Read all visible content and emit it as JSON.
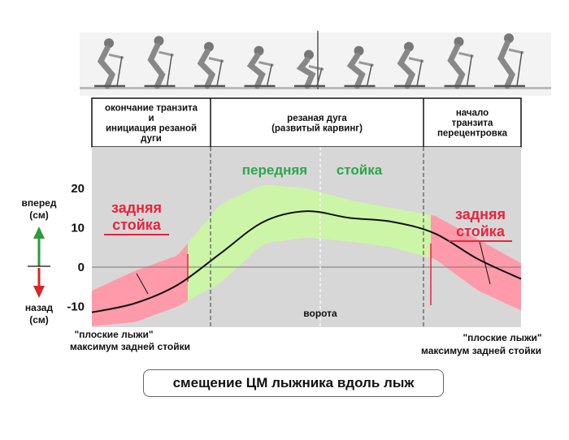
{
  "phases": [
    {
      "lines": [
        "окончание транзита",
        "и",
        "инициация резаной",
        "дуги"
      ]
    },
    {
      "lines": [
        "резаная дуга",
        "(развитый карвинг)"
      ]
    },
    {
      "lines": [
        "начало",
        "транзита",
        "перецентровка"
      ]
    }
  ],
  "stance": {
    "forward_word1": "передняя",
    "forward_word2": "стойка",
    "back_left": [
      "задняя",
      "стойка"
    ],
    "back_right": [
      "задняя",
      "стойка"
    ]
  },
  "y_label_forward": [
    "вперед",
    "(см)"
  ],
  "y_label_back": [
    "назад",
    "(см)"
  ],
  "gate_label": "ворота",
  "flat_ski_left": [
    "\"плоские лыжи\"",
    "максимум задней стойки"
  ],
  "flat_ski_right": [
    "\"плоские лыжи\"",
    "максимум задней стойки"
  ],
  "caption": "смещение ЦМ лыжника вдоль лыж",
  "colors": {
    "forward_band": "#ccf5a8",
    "back_band": "#ff9aaa",
    "forward_text": "#2aa84a",
    "back_text": "#e8243c",
    "plot_bg": "#d7d7d7",
    "arrow_up": "#2e9a3e",
    "arrow_down": "#d62828"
  },
  "chart_data": {
    "type": "line",
    "y_ticks": [
      20,
      10,
      0,
      -10
    ],
    "ylim": [
      -15,
      30
    ],
    "x": [
      0,
      10,
      20,
      30,
      40,
      50,
      60,
      70,
      80,
      90,
      100
    ],
    "series": [
      {
        "values": [
          -11.5,
          -9.2,
          -4.5,
          3.5,
          11.5,
          14.2,
          12.5,
          11.5,
          8.5,
          2.0,
          -3.0
        ]
      }
    ],
    "band_upper": [
      -6,
      -1,
      3,
      16,
      21,
      20,
      17,
      15,
      13,
      7,
      1
    ],
    "band_lower": [
      -15,
      -14,
      -10,
      -4,
      6,
      7.5,
      6.5,
      5,
      2,
      -6,
      -11
    ],
    "grid": false
  },
  "figures": {
    "count": 9
  }
}
